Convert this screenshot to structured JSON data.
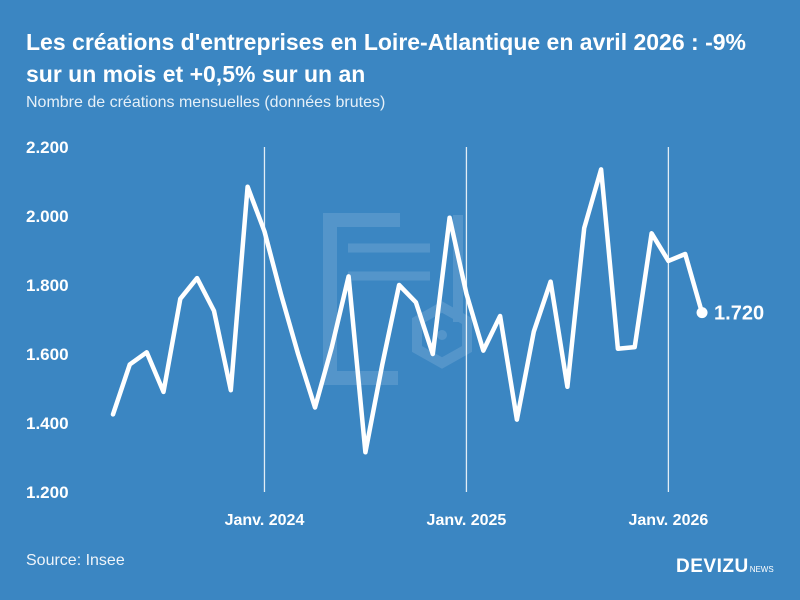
{
  "header": {
    "title": "Les créations d'entreprises en Loire-Atlantique en avril 2026 : -9% sur un mois et +0,5% sur un an",
    "subtitle": "Nombre de créations mensuelles (données brutes)"
  },
  "footer": {
    "source": "Source: Insee",
    "brand": "DEVIZU",
    "brand_suffix": "NEWS"
  },
  "colors": {
    "background": "#3b86c2",
    "line": "#ffffff",
    "watermark": "#6aa3d2"
  },
  "chart_data": {
    "type": "line",
    "title": "Les créations d'entreprises en Loire-Atlantique en avril 2026 : -9% sur un mois et +0,5% sur un an",
    "subtitle": "Nombre de créations mensuelles (données brutes)",
    "x": [
      "2023-04",
      "2023-05",
      "2023-06",
      "2023-07",
      "2023-08",
      "2023-09",
      "2023-10",
      "2023-11",
      "2023-12",
      "2024-01",
      "2024-02",
      "2024-03",
      "2024-04",
      "2024-05",
      "2024-06",
      "2024-07",
      "2024-08",
      "2024-09",
      "2024-10",
      "2024-11",
      "2024-12",
      "2025-01",
      "2025-02",
      "2025-03",
      "2025-04",
      "2025-05",
      "2025-06",
      "2025-07",
      "2025-08",
      "2025-09",
      "2025-10",
      "2025-11",
      "2025-12",
      "2026-01",
      "2026-02",
      "2026-03",
      "2026-04"
    ],
    "series": [
      {
        "values": [
          1425,
          1570,
          1605,
          1490,
          1760,
          1820,
          1725,
          1495,
          2085,
          1955,
          1770,
          1600,
          1445,
          1620,
          1825,
          1315,
          1570,
          1800,
          1750,
          1600,
          1995,
          1775,
          1610,
          1710,
          1410,
          1665,
          1810,
          1505,
          1965,
          2135,
          1615,
          1620,
          1950,
          1870,
          1890,
          1720,
          null
        ]
      }
    ],
    "last_value_label": "1.720",
    "ylim": [
      1200,
      2200
    ],
    "yticks": [
      1200,
      1400,
      1600,
      1800,
      2000,
      2200
    ],
    "ytick_labels": [
      "1.200",
      "1.400",
      "1.600",
      "1.800",
      "2.000",
      "2.200"
    ],
    "xticks": [
      {
        "at": "2024-01",
        "label": "Janv. 2024"
      },
      {
        "at": "2025-01",
        "label": "Janv. 2025"
      },
      {
        "at": "2026-01",
        "label": "Janv. 2026"
      }
    ],
    "grid": "vertical lines at January of each year"
  }
}
